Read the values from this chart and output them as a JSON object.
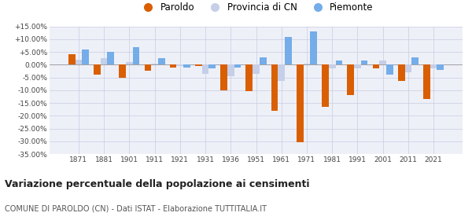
{
  "years": [
    1871,
    1881,
    1901,
    1911,
    1921,
    1931,
    1936,
    1951,
    1961,
    1971,
    1981,
    1991,
    2001,
    2011,
    2021
  ],
  "paroldo": [
    4.0,
    -4.0,
    -5.0,
    -2.5,
    -1.0,
    -0.5,
    -10.0,
    -10.5,
    -18.0,
    -30.5,
    -16.5,
    -12.0,
    -1.5,
    -6.5,
    -13.5
  ],
  "provincia_cn": [
    2.0,
    2.5,
    1.0,
    0.5,
    -0.5,
    -3.5,
    -4.5,
    -3.5,
    -6.5,
    0.5,
    -1.5,
    -1.5,
    1.5,
    -3.0,
    -1.5
  ],
  "piemonte": [
    6.0,
    5.0,
    7.0,
    2.5,
    -1.0,
    -1.5,
    -1.0,
    3.0,
    11.0,
    13.0,
    1.5,
    1.5,
    -4.0,
    3.0,
    -2.0
  ],
  "paroldo_color": "#d95f02",
  "provincia_color": "#c6cfe8",
  "piemonte_color": "#74ade8",
  "title": "Variazione percentuale della popolazione ai censimenti",
  "subtitle": "COMUNE DI PAROLDO (CN) - Dati ISTAT - Elaborazione TUTTITALIA.IT",
  "ylim": [
    -35.0,
    15.0
  ],
  "yticks": [
    -35.0,
    -30.0,
    -25.0,
    -20.0,
    -15.0,
    -10.0,
    -5.0,
    0.0,
    5.0,
    10.0,
    15.0
  ],
  "legend_labels": [
    "Paroldo",
    "Provincia di CN",
    "Piemonte"
  ],
  "bar_width": 0.27,
  "background_color": "#eef0f8"
}
